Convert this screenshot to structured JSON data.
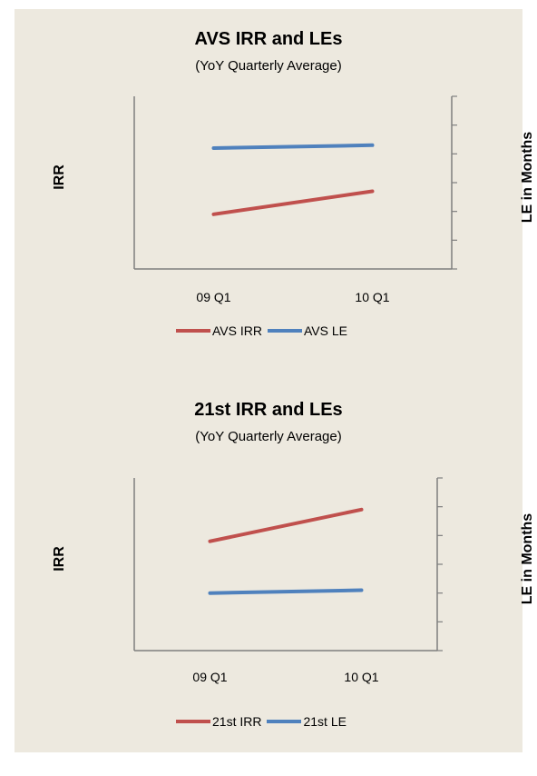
{
  "chart_data": [
    {
      "type": "line",
      "title": "AVS IRR and LEs",
      "subtitle": "(YoY Quarterly Average)",
      "ylabel": "IRR",
      "y2label": "LE  in Months",
      "categories": [
        "09 Q1",
        "10 Q1"
      ],
      "series": [
        {
          "name": "AVS IRR",
          "axis": "left",
          "color": "#c0504d",
          "values": [
            1.9,
            2.7
          ]
        },
        {
          "name": "AVS LE",
          "axis": "right",
          "color": "#4f81bd",
          "values": [
            4.2,
            4.3
          ]
        }
      ],
      "ylim": [
        0,
        6
      ],
      "y2lim": [
        0,
        6
      ],
      "y_tick_labels_shown": false,
      "legend_position": "bottom"
    },
    {
      "type": "line",
      "title": "21st IRR and LEs",
      "subtitle": "(YoY Quarterly Average)",
      "ylabel": "IRR",
      "y2label": "LE  in Months",
      "categories": [
        "09 Q1",
        "10 Q1"
      ],
      "series": [
        {
          "name": "21st IRR",
          "axis": "left",
          "color": "#c0504d",
          "values": [
            3.8,
            4.9
          ]
        },
        {
          "name": "21st LE",
          "axis": "right",
          "color": "#4f81bd",
          "values": [
            2.0,
            2.1
          ]
        }
      ],
      "ylim": [
        0,
        6
      ],
      "y2lim": [
        0,
        6
      ],
      "y_tick_labels_shown": false,
      "legend_position": "bottom"
    }
  ]
}
